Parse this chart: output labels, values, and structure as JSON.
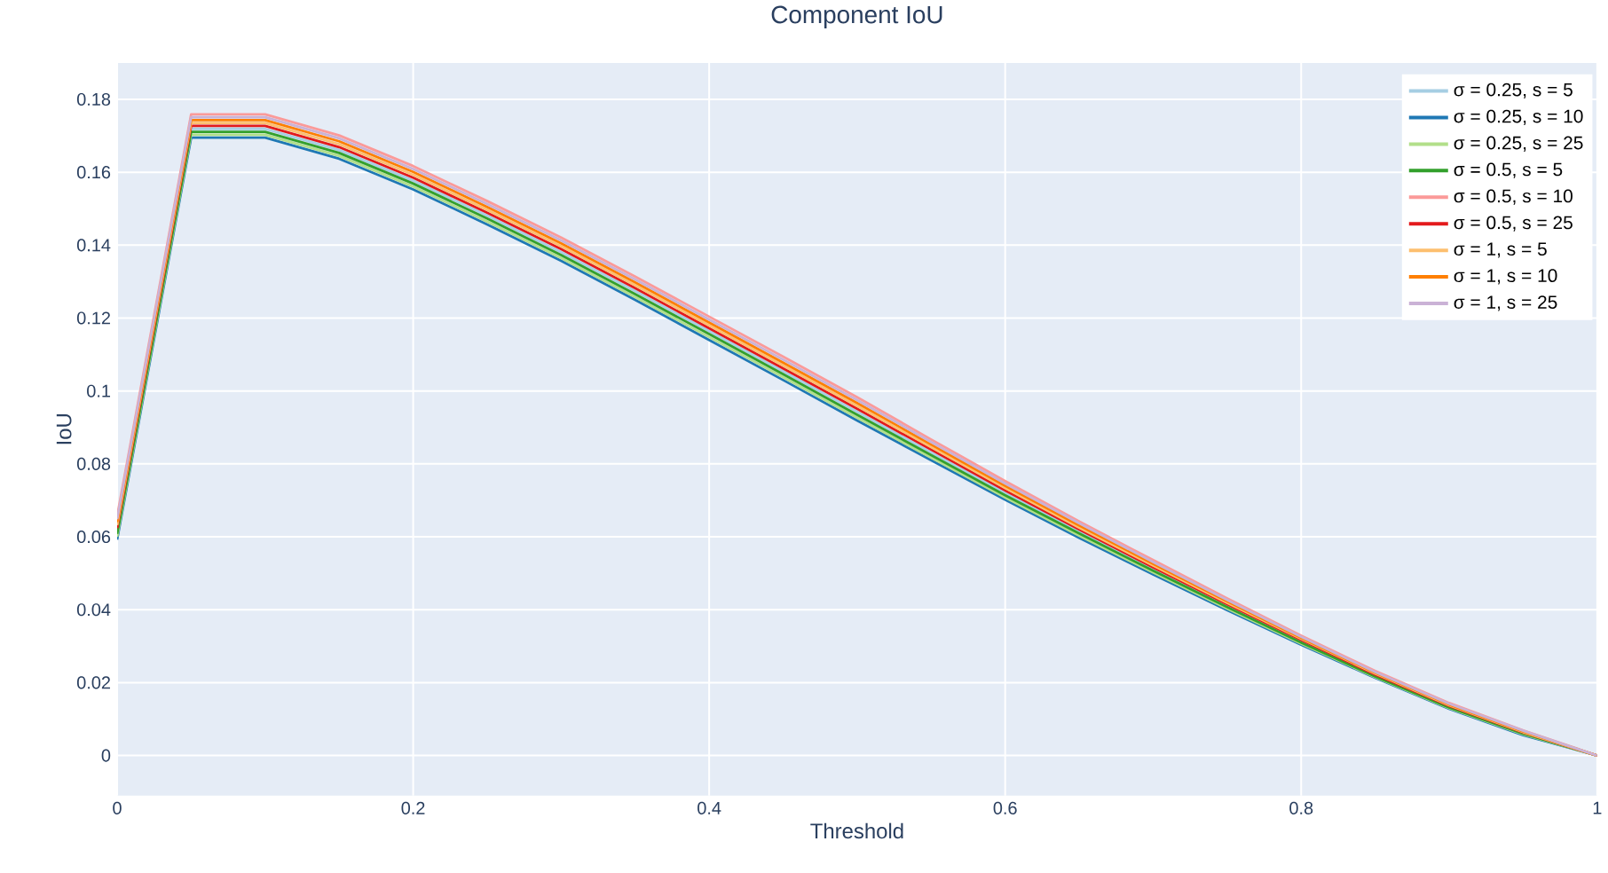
{
  "chart_data": {
    "type": "line",
    "title": "Component IoU",
    "xlabel": "Threshold",
    "ylabel": "IoU",
    "x": [
      0,
      0.05,
      0.1,
      0.15,
      0.2,
      0.25,
      0.3,
      0.35,
      0.4,
      0.45,
      0.5,
      0.55,
      0.6,
      0.65,
      0.7,
      0.75,
      0.8,
      0.85,
      0.9,
      0.95,
      1
    ],
    "xlim": [
      0,
      1
    ],
    "ylim": [
      -0.011,
      0.19
    ],
    "xticks": [
      0,
      0.2,
      0.4,
      0.6,
      0.8,
      1
    ],
    "yticks": [
      0,
      0.02,
      0.04,
      0.06,
      0.08,
      0.1,
      0.12,
      0.14,
      0.16,
      0.18
    ],
    "grid": true,
    "legend": "top right",
    "marker": "none",
    "line_style": "solid",
    "series": [
      {
        "name": "σ = 0.25, s = 5",
        "color": "#a6cee3",
        "values": [
          0.0616,
          0.1719,
          0.1719,
          0.1661,
          0.1577,
          0.1481,
          0.1381,
          0.1274,
          0.1164,
          0.1054,
          0.0943,
          0.0831,
          0.0721,
          0.0614,
          0.0512,
          0.0411,
          0.0313,
          0.022,
          0.0134,
          0.0061,
          0
        ]
      },
      {
        "name": "σ = 0.25, s = 10",
        "color": "#1f78b4",
        "values": [
          0.0592,
          0.1695,
          0.1695,
          0.1637,
          0.1553,
          0.1457,
          0.1357,
          0.125,
          0.114,
          0.103,
          0.0919,
          0.081,
          0.0702,
          0.0597,
          0.0497,
          0.0399,
          0.0304,
          0.0213,
          0.0128,
          0.0056,
          0
        ]
      },
      {
        "name": "σ = 0.25, s = 25",
        "color": "#b2df8a",
        "values": [
          0.06,
          0.1703,
          0.1703,
          0.1645,
          0.1561,
          0.1465,
          0.1365,
          0.1258,
          0.1148,
          0.1038,
          0.0927,
          0.0817,
          0.0708,
          0.0603,
          0.0502,
          0.0403,
          0.0307,
          0.0215,
          0.013,
          0.0058,
          0
        ]
      },
      {
        "name": "σ = 0.5, s = 5",
        "color": "#33a02c",
        "values": [
          0.0608,
          0.1711,
          0.1711,
          0.1653,
          0.1569,
          0.1473,
          0.1373,
          0.1266,
          0.1156,
          0.1046,
          0.0935,
          0.0824,
          0.0714,
          0.0609,
          0.0507,
          0.0407,
          0.031,
          0.0217,
          0.0132,
          0.006,
          0
        ]
      },
      {
        "name": "σ = 0.5, s = 10",
        "color": "#fb9a99",
        "values": [
          0.0656,
          0.1759,
          0.1759,
          0.1701,
          0.1617,
          0.1521,
          0.1421,
          0.1314,
          0.1204,
          0.1094,
          0.0983,
          0.0867,
          0.0753,
          0.0642,
          0.0536,
          0.0431,
          0.0329,
          0.0232,
          0.0144,
          0.0069,
          0
        ]
      },
      {
        "name": "σ = 0.5, s = 25",
        "color": "#e31a1c",
        "values": [
          0.0624,
          0.1727,
          0.1727,
          0.1669,
          0.1585,
          0.1489,
          0.1389,
          0.1282,
          0.1172,
          0.1062,
          0.0951,
          0.0839,
          0.0727,
          0.062,
          0.0516,
          0.0415,
          0.0317,
          0.0222,
          0.0136,
          0.0063,
          0
        ]
      },
      {
        "name": "σ = 1, s = 5",
        "color": "#fdbf6f",
        "values": [
          0.0632,
          0.1735,
          0.1735,
          0.1677,
          0.1593,
          0.1497,
          0.1397,
          0.129,
          0.118,
          0.107,
          0.0959,
          0.0846,
          0.0734,
          0.0625,
          0.0521,
          0.0419,
          0.032,
          0.0225,
          0.0138,
          0.0064,
          0
        ]
      },
      {
        "name": "σ = 1, s = 10",
        "color": "#ff7f00",
        "values": [
          0.064,
          0.1743,
          0.1743,
          0.1685,
          0.1601,
          0.1505,
          0.1405,
          0.1298,
          0.1188,
          0.1078,
          0.0967,
          0.0853,
          0.074,
          0.0631,
          0.0526,
          0.0423,
          0.0323,
          0.0227,
          0.014,
          0.0066,
          0
        ]
      },
      {
        "name": "σ = 1, s = 25",
        "color": "#cab2d6",
        "values": [
          0.0648,
          0.1751,
          0.1751,
          0.1693,
          0.1609,
          0.1513,
          0.1413,
          0.1306,
          0.1196,
          0.1086,
          0.0975,
          0.086,
          0.0746,
          0.0637,
          0.0531,
          0.0427,
          0.0326,
          0.0229,
          0.0142,
          0.0068,
          0
        ]
      }
    ]
  }
}
